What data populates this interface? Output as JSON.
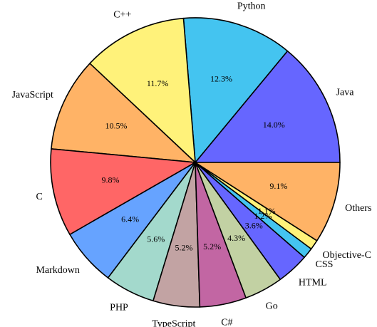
{
  "chart_data": {
    "type": "pie",
    "categories": [
      "Java",
      "Python",
      "C++",
      "JavaScript",
      "C",
      "Markdown",
      "PHP",
      "TypeScript",
      "C#",
      "Go",
      "HTML",
      "CSS",
      "Objective-C",
      "Others"
    ],
    "values": [
      14.0,
      12.3,
      11.7,
      10.5,
      9.8,
      6.4,
      5.6,
      5.2,
      5.2,
      4.3,
      3.6,
      1.2,
      1.1,
      9.1
    ],
    "value_labels": [
      "14.0%",
      "12.3%",
      "11.7%",
      "10.5%",
      "9.8%",
      "6.4%",
      "5.6%",
      "5.2%",
      "5.2%",
      "4.3%",
      "3.6%",
      "1.2%",
      "1.1%",
      "9.1%"
    ],
    "colors": [
      "#6666ff",
      "#44c4f0",
      "#fff27a",
      "#ffb366",
      "#ff6666",
      "#66a3ff",
      "#a3d9cc",
      "#c2a3a3",
      "#c266a3",
      "#c2d1a3",
      "#6666ff",
      "#44c4f0",
      "#fff27a",
      "#ffb366"
    ]
  }
}
